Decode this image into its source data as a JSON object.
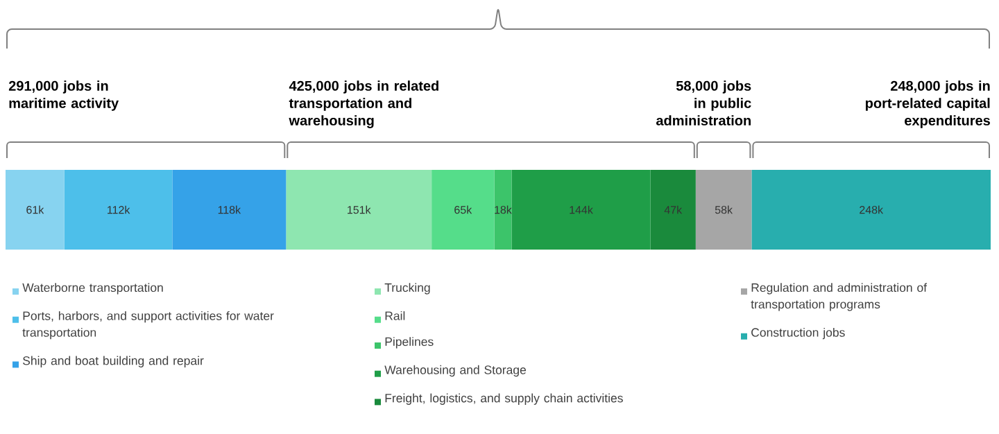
{
  "chart_data": {
    "type": "bar",
    "orientation": "horizontal",
    "stacked": true,
    "categories": [
      null
    ],
    "legend": "bottom",
    "annotations": [
      "291,000 jobs in maritime activity",
      "425,000 jobs in related transportation and warehousing",
      "58,000 jobs in public administration",
      "248,000 jobs in port-related capital expenditures"
    ],
    "series": [
      {
        "name": "Waterborne transportation",
        "color": "#87d3f0",
        "values": [
          61
        ],
        "value_labels": [
          "61k"
        ]
      },
      {
        "name": "Ports, harbors, and support activities for water transportation",
        "color": "#4dbfea",
        "values": [
          112
        ],
        "value_labels": [
          "112k"
        ]
      },
      {
        "name": "Ship and boat building and repair",
        "color": "#35a2e8",
        "values": [
          118
        ],
        "value_labels": [
          "118k"
        ]
      },
      {
        "name": "Trucking",
        "color": "#8ee6b0",
        "values": [
          151
        ],
        "value_labels": [
          "151k"
        ]
      },
      {
        "name": "Rail",
        "color": "#55dd8a",
        "values": [
          65
        ],
        "value_labels": [
          "65k"
        ]
      },
      {
        "name": "Pipelines",
        "color": "#3cc46a",
        "values": [
          18
        ],
        "value_labels": [
          "18k"
        ]
      },
      {
        "name": "Warehousing and Storage",
        "color": "#1f9e48",
        "values": [
          144
        ],
        "value_labels": [
          "144k"
        ]
      },
      {
        "name": "Freight, logistics, and supply chain activities",
        "color": "#1a8a3c",
        "values": [
          47
        ],
        "value_labels": [
          "47k"
        ]
      },
      {
        "name": "Regulation and administration of transportation programs",
        "color": "#a6a6a6",
        "values": [
          58
        ],
        "value_labels": [
          "58k"
        ]
      },
      {
        "name": "Construction jobs",
        "color": "#28aeae",
        "values": [
          248
        ],
        "value_labels": [
          "248k"
        ]
      }
    ]
  }
}
